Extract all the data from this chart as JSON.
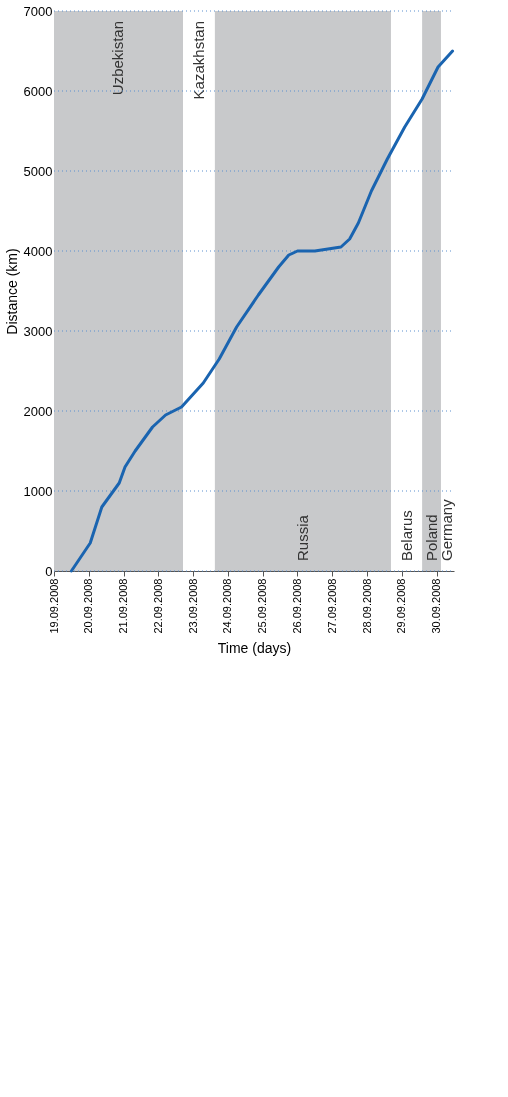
{
  "chart_data": {
    "type": "line",
    "xlabel": "Time (days)",
    "ylabel": "Distance (km)",
    "x": [
      "2008-09-19T12:00",
      "2008-09-20T01:00",
      "2008-09-20T09:00",
      "2008-09-20T21:00",
      "2008-09-21T01:00",
      "2008-09-21T08:00",
      "2008-09-21T20:00",
      "2008-09-22T05:00",
      "2008-09-22T16:00",
      "2008-09-23T07:00",
      "2008-09-23T18:00",
      "2008-09-24T06:00",
      "2008-09-24T21:00",
      "2008-09-25T11:00",
      "2008-09-25T18:00",
      "2008-09-26T00:00",
      "2008-09-26T12:00",
      "2008-09-27T06:00",
      "2008-09-27T12:00",
      "2008-09-27T18:00",
      "2008-09-28T03:00",
      "2008-09-28T14:00",
      "2008-09-29T02:00",
      "2008-09-29T14:00",
      "2008-09-30T01:00",
      "2008-09-30T11:00"
    ],
    "series": [
      {
        "color": "#1a64b0",
        "values": [
          0,
          350,
          800,
          1100,
          1300,
          1500,
          1800,
          1950,
          2050,
          2350,
          2650,
          3050,
          3450,
          3800,
          3950,
          4000,
          4000,
          4050,
          4150,
          4350,
          4750,
          5150,
          5550,
          5900,
          6300,
          6500
        ]
      }
    ],
    "xlim": [
      "2008-09-19T00:00",
      "2008-09-30T12:00"
    ],
    "xticks": [
      {
        "value": "2008-09-19",
        "label": "19.09.2008"
      },
      {
        "value": "2008-09-20",
        "label": "20.09.2008"
      },
      {
        "value": "2008-09-21",
        "label": "21.09.2008"
      },
      {
        "value": "2008-09-22",
        "label": "22.09.2008"
      },
      {
        "value": "2008-09-23",
        "label": "23.09.2008"
      },
      {
        "value": "2008-09-24",
        "label": "24.09.2008"
      },
      {
        "value": "2008-09-25",
        "label": "25.09.2008"
      },
      {
        "value": "2008-09-26",
        "label": "26.09.2008"
      },
      {
        "value": "2008-09-27",
        "label": "27.09.2008"
      },
      {
        "value": "2008-09-28",
        "label": "28.09.2008"
      },
      {
        "value": "2008-09-29",
        "label": "29.09.2008"
      },
      {
        "value": "2008-09-30",
        "label": "30.09.2008"
      }
    ],
    "ylim": [
      0,
      7000
    ],
    "yticks": [
      0,
      1000,
      2000,
      3000,
      4000,
      5000,
      6000,
      7000
    ],
    "grid": "y",
    "line_style": "solid",
    "marker": "none",
    "legend": false,
    "bands": [
      {
        "axis": "x",
        "from": "2008-09-19T00:00",
        "to": "2008-09-22T17:00",
        "label": "Uzbekistan",
        "color": "#c8c9cb"
      },
      {
        "axis": "x",
        "from": "2008-09-23T15:00",
        "to": "2008-09-28T16:30",
        "label": "Russia",
        "color": "#c8c9cb"
      },
      {
        "axis": "x",
        "from": "2008-09-29T14:00",
        "to": "2008-09-30T03:00",
        "label": "Poland",
        "color": "#c8c9cb"
      }
    ],
    "annotations": [
      "Kazakhstan",
      "Belarus",
      "Germany"
    ]
  }
}
